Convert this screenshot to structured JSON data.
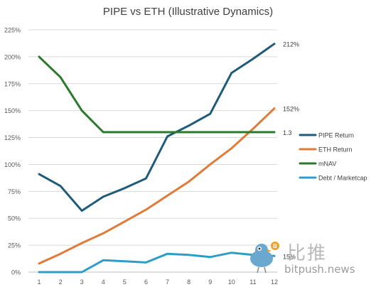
{
  "chart_data": {
    "type": "line",
    "title": "PIPE vs ETH (Illustrative Dynamics)",
    "x": [
      1,
      2,
      3,
      4,
      5,
      6,
      7,
      8,
      9,
      10,
      11,
      12
    ],
    "y_ticks": [
      "0%",
      "25%",
      "50%",
      "75%",
      "100%",
      "125%",
      "150%",
      "175%",
      "200%",
      "225%"
    ],
    "ylim": [
      0,
      2.25
    ],
    "grid": true,
    "legend_position": "right",
    "series": [
      {
        "name": "PIPE Return",
        "color": "#1f5c7a",
        "end_label": "212%",
        "values": [
          0.91,
          0.8,
          0.57,
          0.7,
          0.78,
          0.87,
          1.26,
          1.36,
          1.47,
          1.85,
          1.98,
          2.12
        ]
      },
      {
        "name": "ETH Return",
        "color": "#e07b39",
        "end_label": "152%",
        "values": [
          0.08,
          0.17,
          0.27,
          0.36,
          0.47,
          0.58,
          0.71,
          0.84,
          1.0,
          1.15,
          1.33,
          1.52
        ]
      },
      {
        "name": "mNAV",
        "color": "#2b7a2b",
        "end_label": "1.3",
        "values": [
          2.0,
          1.81,
          1.5,
          1.3,
          1.3,
          1.3,
          1.3,
          1.3,
          1.3,
          1.3,
          1.3,
          1.3
        ]
      },
      {
        "name": "Debt / Marketcap",
        "color": "#2e9ec9",
        "end_label": "15%",
        "values": [
          0.0,
          0.0,
          0.0,
          0.11,
          0.1,
          0.09,
          0.17,
          0.16,
          0.14,
          0.18,
          0.16,
          0.15
        ]
      }
    ]
  },
  "watermark": {
    "chinese": "比推",
    "english": "bitpush.news"
  }
}
